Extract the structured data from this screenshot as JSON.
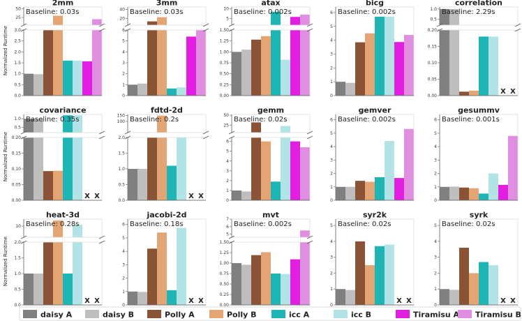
{
  "colors": [
    "#808080",
    "#bebebe",
    "#8b5336",
    "#e3a574",
    "#1fb5b5",
    "#b2e4e5",
    "#e21fe0",
    "#e08ee0"
  ],
  "y_label": "Normalized Runtime",
  "missing_marker": "X",
  "legend": [
    "daisy A",
    "daisy B",
    "Polly A",
    "Polly B",
    "icc A",
    "icc B",
    "Tiramisu A",
    "Tiramisu B"
  ],
  "chart_data": [
    {
      "title": "2mm",
      "baseline": "Baseline: 0.03s",
      "type": "bar",
      "categories": [
        "daisy A",
        "daisy B",
        "Polly A",
        "Polly B",
        "icc A",
        "icc B",
        "Tiramisu A",
        "Tiramisu B"
      ],
      "values": [
        1.0,
        0.98,
        3.2,
        30,
        1.6,
        1.6,
        1.57,
        20
      ],
      "missing": [],
      "lower_ticks": [
        "0.0",
        "0.5",
        "1.0",
        "1.5",
        "2.0",
        "2.5",
        "3.0"
      ],
      "lower_range": [
        0,
        3.0
      ],
      "upper_ticks": [
        "25",
        "50"
      ],
      "upper_range": [
        3.0,
        55
      ]
    },
    {
      "title": "3mm",
      "baseline": "Baseline: 0.03s",
      "type": "bar",
      "categories": [
        "daisy A",
        "daisy B",
        "Polly A",
        "Polly B",
        "icc A",
        "icc B",
        "Tiramisu A",
        "Tiramisu B"
      ],
      "values": [
        1.0,
        1.1,
        14,
        23,
        0.65,
        0.75,
        5.4,
        6.6
      ],
      "missing": [],
      "lower_ticks": [
        "0",
        "1",
        "2",
        "3",
        "4",
        "5",
        "6"
      ],
      "lower_range": [
        0,
        6
      ],
      "upper_ticks": [
        "20",
        "40"
      ],
      "upper_range": [
        6,
        45
      ]
    },
    {
      "title": "atax",
      "baseline": "Baseline: 0.002s",
      "type": "bar",
      "categories": [
        "daisy A",
        "daisy B",
        "Polly A",
        "Polly B",
        "icc A",
        "icc B",
        "Tiramisu A",
        "Tiramisu B"
      ],
      "values": [
        1.0,
        1.05,
        1.28,
        1.36,
        8.5,
        0.82,
        5.8,
        7.0
      ],
      "missing": [],
      "lower_ticks": [
        "0.00",
        "0.25",
        "0.50",
        "0.75",
        "1.00",
        "1.25",
        "1.50"
      ],
      "lower_range": [
        0,
        1.5
      ],
      "upper_ticks": [
        "5",
        "10"
      ],
      "upper_range": [
        1.5,
        11
      ]
    },
    {
      "title": "bicg",
      "baseline": "Baseline: 0.002s",
      "type": "bar",
      "categories": [
        "daisy A",
        "daisy B",
        "Polly A",
        "Polly B",
        "icc A",
        "icc B",
        "Tiramisu A",
        "Tiramisu B"
      ],
      "values": [
        1.0,
        0.92,
        3.85,
        4.5,
        5.7,
        5.7,
        3.87,
        4.38
      ],
      "missing": [],
      "ticks": [
        "0",
        "1",
        "2",
        "3",
        "4",
        "5",
        "6"
      ],
      "range": [
        0,
        6.4
      ]
    },
    {
      "title": "correlation",
      "baseline": "Baseline: 2.29s",
      "type": "bar",
      "categories": [
        "daisy A",
        "daisy B",
        "Polly A",
        "Polly B",
        "icc A",
        "icc B",
        "Tiramisu A",
        "Tiramisu B"
      ],
      "values": [
        1.0,
        1.0,
        0.012,
        0.015,
        0.18,
        0.18,
        null,
        null
      ],
      "missing": [
        6,
        7
      ],
      "lower_ticks": [
        "0.00",
        "0.05",
        "0.10",
        "0.15",
        "0.20"
      ],
      "lower_range": [
        0,
        0.2
      ],
      "upper_ticks": [
        "0.5",
        "1.0"
      ],
      "upper_range": [
        0.2,
        1.1
      ]
    },
    {
      "title": "covariance",
      "baseline": "Baseline: 0.35s",
      "type": "bar",
      "categories": [
        "daisy A",
        "daisy B",
        "Polly A",
        "Polly B",
        "icc A",
        "icc B",
        "Tiramisu A",
        "Tiramisu B"
      ],
      "values": [
        1.0,
        1.0,
        0.093,
        0.094,
        1.2,
        1.2,
        null,
        null
      ],
      "missing": [
        6,
        7
      ],
      "lower_ticks": [
        "0.00",
        "0.05",
        "0.10",
        "0.15",
        "0.20"
      ],
      "lower_range": [
        0,
        0.2
      ],
      "upper_ticks": [
        "0.5",
        "1.0"
      ],
      "upper_range": [
        0.2,
        1.25
      ]
    },
    {
      "title": "fdtd-2d",
      "baseline": "Baseline: 0.2s",
      "type": "bar",
      "categories": [
        "daisy A",
        "daisy B",
        "Polly A",
        "Polly B",
        "icc A",
        "icc B",
        "Tiramisu A",
        "Tiramisu B"
      ],
      "values": [
        1.0,
        1.0,
        2.2,
        150,
        1.1,
        2.1,
        null,
        null
      ],
      "missing": [
        6,
        7
      ],
      "lower_ticks": [
        "0.0",
        "0.5",
        "1.0",
        "1.5",
        "2.0"
      ],
      "lower_range": [
        0,
        2.0
      ],
      "upper_ticks": [
        "100",
        "150"
      ],
      "upper_range": [
        2.0,
        160
      ]
    },
    {
      "title": "gemm",
      "baseline": "Baseline: 0.02s",
      "type": "bar",
      "categories": [
        "daisy A",
        "daisy B",
        "Polly A",
        "Polly B",
        "icc A",
        "icc B",
        "Tiramisu A",
        "Tiramisu B"
      ],
      "values": [
        1.0,
        0.9,
        32,
        6.0,
        1.9,
        23,
        6.0,
        5.4
      ],
      "missing": [],
      "lower_ticks": [
        "0",
        "1",
        "2",
        "3",
        "4",
        "5",
        "6"
      ],
      "lower_range": [
        0,
        6.4
      ],
      "upper_ticks": [
        "25",
        "50"
      ],
      "upper_range": [
        6.4,
        52
      ]
    },
    {
      "title": "gemver",
      "baseline": "Baseline: 0.002s",
      "type": "bar",
      "categories": [
        "daisy A",
        "daisy B",
        "Polly A",
        "Polly B",
        "icc A",
        "icc B",
        "Tiramisu A",
        "Tiramisu B"
      ],
      "values": [
        1.0,
        1.0,
        1.45,
        1.38,
        1.72,
        4.42,
        1.66,
        5.32
      ],
      "missing": [],
      "ticks": [
        "0",
        "1",
        "2",
        "3",
        "4",
        "5",
        "6"
      ],
      "range": [
        0,
        6.4
      ]
    },
    {
      "title": "gesummv",
      "baseline": "Baseline: 0.001s",
      "type": "bar",
      "categories": [
        "daisy A",
        "daisy B",
        "Polly A",
        "Polly B",
        "icc A",
        "icc B",
        "Tiramisu A",
        "Tiramisu B"
      ],
      "values": [
        1.0,
        1.02,
        0.95,
        0.9,
        0.5,
        2.0,
        1.15,
        4.8
      ],
      "missing": [],
      "ticks": [
        "0",
        "1",
        "2",
        "3",
        "4",
        "5",
        "6"
      ],
      "range": [
        0,
        6.4
      ]
    },
    {
      "title": "heat-3d",
      "baseline": "Baseline: 0.28s",
      "type": "bar",
      "categories": [
        "daisy A",
        "daisy B",
        "Polly A",
        "Polly B",
        "icc A",
        "icc B",
        "Tiramisu A",
        "Tiramisu B"
      ],
      "values": [
        1.0,
        1.0,
        2.1,
        14,
        1.0,
        11,
        null,
        null
      ],
      "missing": [
        6,
        7
      ],
      "lower_ticks": [
        "0.0",
        "0.5",
        "1.0",
        "1.5",
        "2.0"
      ],
      "lower_range": [
        0,
        2.0
      ],
      "upper_ticks": [
        "10"
      ],
      "upper_range": [
        2.0,
        15
      ]
    },
    {
      "title": "jacobi-2d",
      "baseline": "Baseline: 0.18s",
      "type": "bar",
      "categories": [
        "daisy A",
        "daisy B",
        "Polly A",
        "Polly B",
        "icc A",
        "icc B",
        "Tiramisu A",
        "Tiramisu B"
      ],
      "values": [
        1.0,
        0.97,
        4.2,
        5.4,
        1.1,
        5.75,
        null,
        null
      ],
      "missing": [
        6,
        7
      ],
      "ticks": [
        "0",
        "1",
        "2",
        "3",
        "4",
        "5",
        "6"
      ],
      "range": [
        0,
        6.4
      ]
    },
    {
      "title": "mvt",
      "baseline": "Baseline: 0.002s",
      "type": "bar",
      "categories": [
        "daisy A",
        "daisy B",
        "Polly A",
        "Polly B",
        "icc A",
        "icc B",
        "Tiramisu A",
        "Tiramisu B"
      ],
      "values": [
        1.0,
        0.96,
        1.19,
        1.26,
        0.75,
        0.74,
        1.09,
        5.5
      ],
      "missing": [],
      "lower_ticks": [
        "0.00",
        "0.25",
        "0.50",
        "0.75",
        "1.00",
        "1.25",
        "1.50"
      ],
      "lower_range": [
        0,
        1.5
      ],
      "upper_ticks": [
        "5",
        "6",
        "7"
      ],
      "upper_range": [
        4.6,
        7
      ]
    },
    {
      "title": "syr2k",
      "baseline": "Baseline: 0.02s",
      "type": "bar",
      "categories": [
        "daisy A",
        "daisy B",
        "Polly A",
        "Polly B",
        "icc A",
        "icc B",
        "Tiramisu A",
        "Tiramisu B"
      ],
      "values": [
        1.0,
        0.94,
        4.0,
        2.5,
        3.7,
        3.8,
        null,
        null
      ],
      "missing": [
        6,
        7
      ],
      "ticks": [
        "0",
        "1",
        "2",
        "3",
        "4",
        "5"
      ],
      "range": [
        0,
        5.4
      ]
    },
    {
      "title": "syrk",
      "baseline": "Baseline: 0.02s",
      "type": "bar",
      "categories": [
        "daisy A",
        "daisy B",
        "Polly A",
        "Polly B",
        "icc A",
        "icc B",
        "Tiramisu A",
        "Tiramisu B"
      ],
      "values": [
        1.0,
        0.95,
        3.6,
        2.0,
        2.7,
        2.5,
        null,
        null
      ],
      "missing": [
        6,
        7
      ],
      "ticks": [
        "0",
        "1",
        "2",
        "3",
        "4",
        "5"
      ],
      "range": [
        0,
        5.4
      ]
    }
  ]
}
